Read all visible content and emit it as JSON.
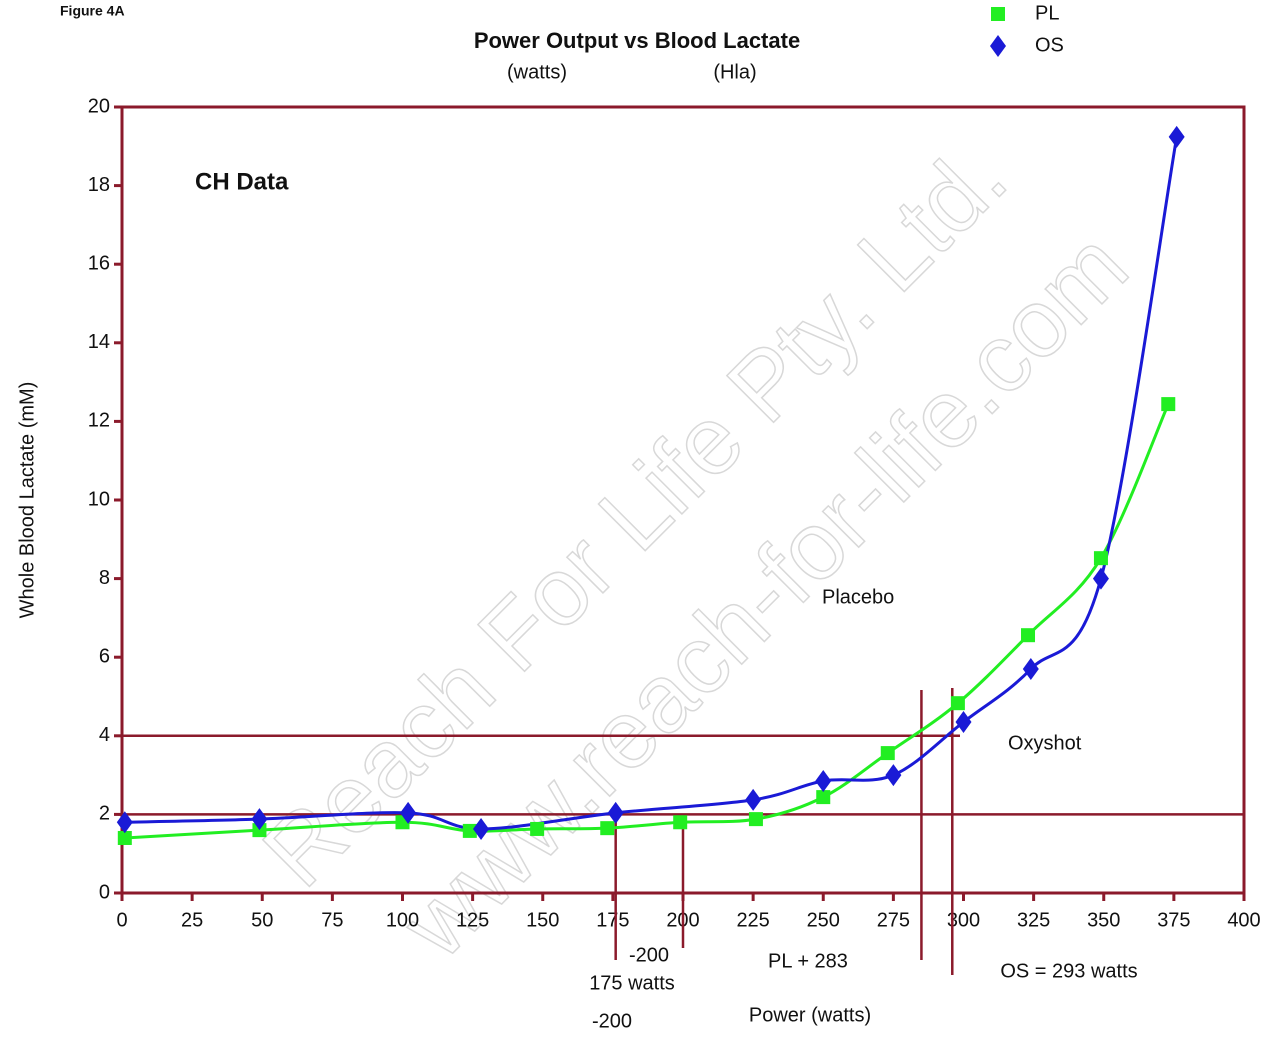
{
  "chart_data": {
    "type": "line",
    "figure_label": "Figure 4A",
    "title": "Power Output vs Blood Lactate",
    "subtitles": [
      "(watts)",
      "(Hla)"
    ],
    "x_label": "Power (watts)",
    "y_label": "Whole Blood Lactate (mM)",
    "annotations": [
      "CH Data",
      "Placebo",
      "Oxyshot",
      "-200",
      "175 watts",
      "-200",
      "PL + 283",
      "OS = 293 watts"
    ],
    "watermark": [
      "Reach For Life Pty. Ltd.",
      "www.reach-for-life.com"
    ],
    "series": [
      {
        "name": "PL",
        "color": "#22ee22",
        "marker": "square",
        "x": [
          1,
          49,
          100,
          124,
          148,
          173,
          199,
          226,
          250,
          273,
          298,
          323,
          349,
          373
        ],
        "values": [
          1.4,
          1.6,
          1.8,
          1.58,
          1.63,
          1.65,
          1.8,
          1.88,
          2.44,
          3.56,
          4.83,
          6.56,
          8.52,
          12.44
        ]
      },
      {
        "name": "OS",
        "color": "#1a1ad6",
        "marker": "diamond",
        "x": [
          1,
          49,
          102,
          128,
          176,
          225,
          250,
          275,
          300,
          324,
          349,
          376
        ],
        "values": [
          1.8,
          1.88,
          2.04,
          1.63,
          2.04,
          2.37,
          2.85,
          3.0,
          4.35,
          5.7,
          8.0,
          19.24
        ]
      }
    ],
    "hlines": [
      4,
      2
    ],
    "vlines": [
      176,
      200,
      285,
      296
    ],
    "line_color": "#8b1a2b",
    "xlim": [
      0,
      400
    ],
    "xticks": [
      0,
      25,
      50,
      75,
      100,
      125,
      150,
      175,
      200,
      225,
      250,
      275,
      300,
      325,
      350,
      375,
      400
    ],
    "ylim": [
      0,
      20
    ],
    "yticks": [
      0,
      2,
      4,
      6,
      8,
      10,
      12,
      14,
      16,
      18,
      20
    ],
    "legend": "top-right"
  }
}
